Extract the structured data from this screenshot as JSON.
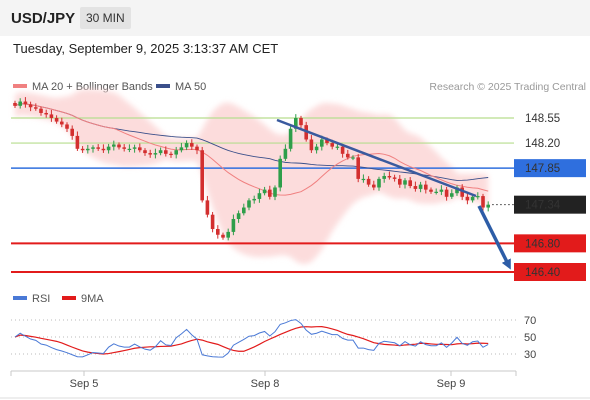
{
  "header": {
    "symbol": "USD/JPY",
    "timeframe": "30 MIN"
  },
  "timestamp": "Tuesday, September 9, 2025 3:13:37 AM CET",
  "credit": "Research © 2025 Trading Central",
  "colors": {
    "bull": "#2e9e4a",
    "bear": "#d32f2f",
    "ma20": "#f08080",
    "ma50": "#3a4f8a",
    "band": "#fbd6d6",
    "green_level": "#b6dd8e",
    "blue_level": "#2f6fde",
    "red_level": "#e21b1b",
    "arrow": "#2d5da7",
    "rsi": "#4a79d6",
    "rsi_ma": "#e21b1b"
  },
  "chart_data": [
    {
      "type": "candlestick",
      "legend": [
        "MA 20 + Bollinger Bands",
        "MA 50"
      ],
      "x_ticks": [
        "Sep 5",
        "Sep 8",
        "Sep 9"
      ],
      "ylim": [
        146.3,
        149.05
      ],
      "resistance": [
        {
          "label": "148.55",
          "value": 148.55
        },
        {
          "label": "148.20",
          "value": 148.2
        },
        {
          "label": "147.85",
          "value": 147.85
        }
      ],
      "current_price": {
        "label": "147.34",
        "value": 147.34
      },
      "support": [
        {
          "label": "146.80",
          "value": 146.8
        },
        {
          "label": "146.40",
          "value": 146.4
        }
      ],
      "closes": [
        148.72,
        148.78,
        148.74,
        148.7,
        148.68,
        148.62,
        148.6,
        148.55,
        148.5,
        148.46,
        148.4,
        148.3,
        148.12,
        148.1,
        148.12,
        148.14,
        148.12,
        148.1,
        148.15,
        148.18,
        148.14,
        148.12,
        148.12,
        148.14,
        148.1,
        148.06,
        148.04,
        148.06,
        148.1,
        148.05,
        148.04,
        148.1,
        148.14,
        148.2,
        148.15,
        148.1,
        147.4,
        147.2,
        147.0,
        146.92,
        146.88,
        146.96,
        147.14,
        147.22,
        147.3,
        147.4,
        147.42,
        147.5,
        147.55,
        147.45,
        147.58,
        147.98,
        148.12,
        148.4,
        148.55,
        148.45,
        148.25,
        148.1,
        148.15,
        148.25,
        148.2,
        148.15,
        148.15,
        148.05,
        148.0,
        148.0,
        147.7,
        147.7,
        147.62,
        147.58,
        147.7,
        147.74,
        147.72,
        147.7,
        147.62,
        147.68,
        147.6,
        147.56,
        147.62,
        147.55,
        147.52,
        147.52,
        147.55,
        147.45,
        147.5,
        147.58,
        147.45,
        147.4,
        147.45,
        147.46,
        147.3,
        147.34
      ]
    },
    {
      "type": "line",
      "legend": [
        "RSI",
        "9MA"
      ],
      "y_ticks": [
        70,
        50,
        30
      ],
      "ylim": [
        20,
        80
      ]
    }
  ]
}
